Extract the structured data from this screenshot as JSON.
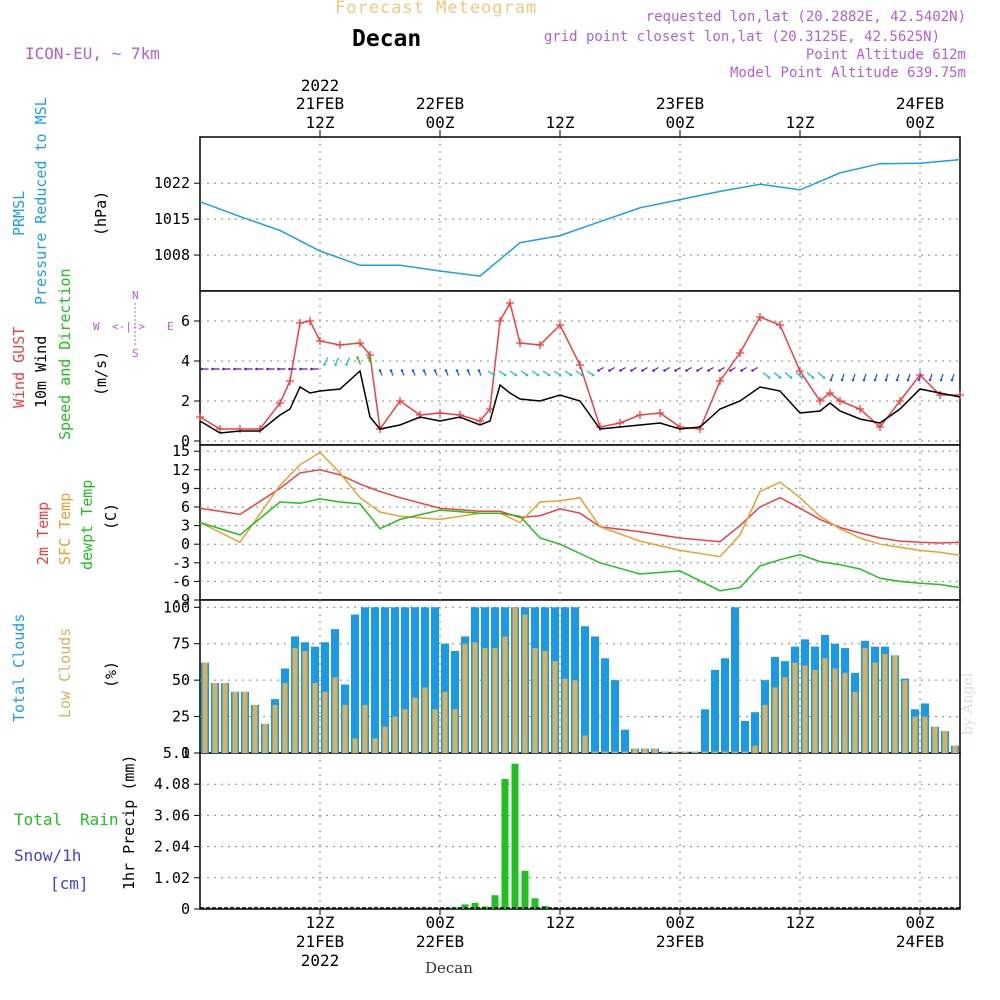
{
  "header": {
    "title": "Forecast Meteogram",
    "location": "Decan",
    "model": "ICON-EU, ~ 7km",
    "requested": "requested lon,lat (20.2882E, 42.5402N)",
    "grid_point": "grid point closest lon,lat (20.3125E, 42.5625N)",
    "point_altitude": "Point Altitude 612m",
    "model_altitude": "Model Point Altitude 639.75m",
    "watermark": "by Angel",
    "footer_location": "Decan"
  },
  "time_axis": {
    "year": "2022",
    "ticks": [
      {
        "hour": 12,
        "top": "21FEB",
        "bottom": "12Z",
        "year": true
      },
      {
        "hour": 24,
        "top": "22FEB",
        "bottom": "00Z",
        "year": false
      },
      {
        "hour": 36,
        "top": "",
        "bottom": "12Z",
        "year": false
      },
      {
        "hour": 48,
        "top": "23FEB",
        "bottom": "00Z",
        "year": false
      },
      {
        "hour": 60,
        "top": "",
        "bottom": "12Z",
        "year": false
      },
      {
        "hour": 72,
        "top": "24FEB",
        "bottom": "00Z",
        "year": false
      }
    ]
  },
  "panels": {
    "pressure": {
      "label_var": "PRMSL",
      "label_name": "Pressure Reduced to MSL",
      "unit": "(hPa)"
    },
    "wind": {
      "label_gust": "Wind GUST",
      "label_10m": "10m Wind",
      "label_speed": "Speed and Direction",
      "unit": "(m/s)",
      "compass_n": "N",
      "compass_s": "S",
      "compass_w": "W",
      "compass_e": "E"
    },
    "temp": {
      "label_2m": "2m Temp",
      "label_sfc": "SFC Temp",
      "label_dewpt": "dewpt Temp",
      "unit": "(C)"
    },
    "clouds": {
      "label_total": "Total Clouds",
      "label_low": "Low Clouds",
      "unit": "(%)"
    },
    "precip": {
      "label_total": "Total",
      "label_rain": "Rain",
      "label_snow": "Snow/1h",
      "label_cm": "[cm]",
      "label_axis": "1hr Precip (mm)"
    }
  },
  "colors": {
    "pressure": "#1aa0e6",
    "gust": "#f04040",
    "wind": "#000000",
    "temp2m": "#f04040",
    "sfc": "#e8a030",
    "dewpt": "#20c020",
    "total_clouds": "#1a9ae6",
    "low_clouds": "#d8b060",
    "rain": "#20c020",
    "snow": "#4040e0",
    "arrow_west": "#6020c0",
    "arrow_east": "#20c0c0",
    "arrow_south": "#2060e0",
    "arrow_north": "#20c020"
  },
  "chart_data": [
    {
      "type": "line",
      "title": "Pressure Reduced to MSL",
      "ylabel": "(hPa)",
      "ylim": [
        1001,
        1031
      ],
      "yticks": [
        1008,
        1015,
        1022
      ],
      "x_hours": [
        0,
        4,
        8,
        12,
        16,
        20,
        24,
        28,
        32,
        36,
        40,
        44,
        48,
        52,
        56,
        60,
        64,
        68,
        72,
        76
      ],
      "series": [
        {
          "name": "PRMSL",
          "values": [
            1018.4,
            1015.5,
            1012.8,
            1008.8,
            1006.0,
            1006.0,
            1004.9,
            1003.9,
            1010.4,
            1011.8,
            1014.5,
            1017.2,
            1018.8,
            1020.4,
            1021.8,
            1020.7,
            1024.0,
            1025.8,
            1025.9,
            1026.6
          ]
        }
      ]
    },
    {
      "type": "line",
      "title": "Wind GUST / 10m Wind Speed and Direction",
      "ylabel": "(m/s)",
      "ylim": [
        -0.2,
        7.5
      ],
      "yticks": [
        0,
        2,
        4,
        6
      ],
      "x_hours": [
        0,
        2,
        4,
        6,
        8,
        9,
        10,
        11,
        12,
        14,
        16,
        17,
        18,
        20,
        22,
        24,
        26,
        28,
        29,
        30,
        31,
        32,
        34,
        36,
        38,
        40,
        42,
        44,
        46,
        48,
        50,
        52,
        54,
        56,
        58,
        60,
        62,
        63,
        64,
        66,
        68,
        70,
        72,
        74,
        76
      ],
      "series": [
        {
          "name": "Wind GUST",
          "values": [
            1.2,
            0.6,
            0.6,
            0.6,
            1.9,
            3.0,
            5.9,
            6.0,
            5.0,
            4.8,
            4.9,
            4.3,
            0.6,
            2.0,
            1.3,
            1.4,
            1.3,
            1.0,
            1.6,
            6.0,
            6.9,
            4.9,
            4.8,
            5.8,
            3.8,
            0.7,
            0.9,
            1.3,
            1.4,
            0.7,
            0.6,
            3.0,
            4.4,
            6.2,
            5.8,
            3.5,
            2.0,
            2.4,
            2.0,
            1.6,
            0.7,
            2.0,
            3.3,
            2.3,
            2.3
          ]
        },
        {
          "name": "10m Wind",
          "values": [
            1.0,
            0.4,
            0.5,
            0.5,
            1.3,
            1.6,
            2.7,
            2.4,
            2.5,
            2.6,
            3.5,
            1.2,
            0.6,
            0.8,
            1.2,
            1.0,
            1.2,
            0.8,
            1.0,
            2.8,
            2.4,
            2.1,
            2.0,
            2.3,
            2.0,
            0.6,
            0.7,
            0.8,
            0.9,
            0.6,
            0.7,
            1.6,
            2.0,
            2.7,
            2.5,
            1.4,
            1.5,
            1.9,
            1.5,
            1.1,
            0.9,
            1.6,
            2.6,
            2.4,
            2.2
          ]
        }
      ]
    },
    {
      "type": "line",
      "title": "2m Temp / SFC Temp / dewpt Temp",
      "ylabel": "(C)",
      "ylim": [
        -9,
        16
      ],
      "yticks": [
        -9,
        -6,
        -3,
        0,
        3,
        6,
        9,
        12,
        15
      ],
      "x_hours": [
        0,
        4,
        8,
        10,
        12,
        14,
        16,
        18,
        20,
        24,
        28,
        30,
        32,
        34,
        36,
        38,
        40,
        44,
        48,
        52,
        54,
        56,
        58,
        60,
        62,
        64,
        66,
        68,
        70,
        72,
        74,
        76
      ],
      "series": [
        {
          "name": "2m Temp",
          "values": [
            5.8,
            4.8,
            9.0,
            11.5,
            12.0,
            11.2,
            9.7,
            8.5,
            7.5,
            5.8,
            5.3,
            5.3,
            4.3,
            4.6,
            5.7,
            5.0,
            2.8,
            2.0,
            1.0,
            0.4,
            3.0,
            6.0,
            7.5,
            5.8,
            4.0,
            2.7,
            1.8,
            1.0,
            0.5,
            0.3,
            0.2,
            0.3
          ]
        },
        {
          "name": "SFC Temp",
          "values": [
            3.5,
            0.3,
            9.5,
            12.8,
            14.8,
            11.5,
            7.5,
            5.2,
            4.5,
            4.0,
            5.0,
            5.0,
            3.5,
            6.8,
            7.0,
            7.5,
            2.8,
            0.5,
            -1.0,
            -2.0,
            1.5,
            8.5,
            10.0,
            7.5,
            4.5,
            2.5,
            1.0,
            0.0,
            -0.5,
            -1.0,
            -1.3,
            -1.8
          ]
        },
        {
          "name": "dewpt Temp",
          "values": [
            3.5,
            1.5,
            6.8,
            6.6,
            7.3,
            6.8,
            6.5,
            2.5,
            4.0,
            5.5,
            5.0,
            5.0,
            4.5,
            1.0,
            0.0,
            -1.5,
            -3.0,
            -4.8,
            -4.3,
            -7.5,
            -7.0,
            -3.5,
            -2.5,
            -1.7,
            -2.8,
            -3.3,
            -4.0,
            -5.5,
            -6.0,
            -6.3,
            -6.5,
            -7.0
          ]
        }
      ]
    },
    {
      "type": "bar",
      "title": "Total Clouds / Low Clouds",
      "ylabel": "(%)",
      "ylim": [
        0,
        105
      ],
      "yticks": [
        0,
        25,
        50,
        75,
        100
      ],
      "x_hours": [
        0,
        1,
        2,
        3,
        4,
        5,
        6,
        7,
        8,
        9,
        10,
        11,
        12,
        13,
        14,
        15,
        16,
        17,
        18,
        19,
        20,
        21,
        22,
        23,
        24,
        25,
        26,
        27,
        28,
        29,
        30,
        31,
        32,
        33,
        34,
        35,
        36,
        37,
        38,
        39,
        40,
        41,
        42,
        43,
        44,
        45,
        46,
        47,
        48,
        49,
        50,
        51,
        52,
        53,
        54,
        55,
        56,
        57,
        58,
        59,
        60,
        61,
        62,
        63,
        64,
        65,
        66,
        67,
        68,
        69,
        70,
        71,
        72,
        73,
        74,
        75
      ],
      "series": [
        {
          "name": "Total Clouds",
          "values": [
            62,
            48,
            48,
            42,
            42,
            33,
            20,
            37,
            58,
            80,
            76,
            73,
            76,
            85,
            47,
            95,
            100,
            100,
            100,
            100,
            100,
            100,
            100,
            100,
            75,
            70,
            80,
            100,
            100,
            100,
            100,
            100,
            100,
            100,
            100,
            100,
            100,
            100,
            87,
            80,
            65,
            50,
            16,
            3,
            3,
            3,
            1,
            1,
            1,
            1,
            30,
            57,
            65,
            100,
            22,
            28,
            50,
            66,
            63,
            73,
            78,
            73,
            81,
            75,
            72,
            55,
            77,
            73,
            73,
            67,
            51,
            30,
            34,
            18,
            15,
            5
          ]
        },
        {
          "name": "Low Clouds",
          "values": [
            62,
            48,
            48,
            42,
            42,
            33,
            20,
            33,
            48,
            72,
            70,
            48,
            42,
            52,
            33,
            10,
            33,
            10,
            18,
            25,
            30,
            38,
            45,
            30,
            42,
            30,
            75,
            76,
            72,
            72,
            80,
            100,
            95,
            72,
            70,
            63,
            51,
            50,
            12,
            1,
            1,
            1,
            1,
            3,
            3,
            3,
            1,
            1,
            1,
            1,
            1,
            1,
            1,
            1,
            1,
            5,
            33,
            45,
            52,
            62,
            60,
            57,
            65,
            58,
            55,
            42,
            72,
            62,
            68,
            67,
            50,
            25,
            25,
            18,
            15,
            5
          ]
        }
      ]
    },
    {
      "type": "bar",
      "title": "1hr Precip (mm)",
      "ylabel": "1hr Precip (mm)",
      "ylim": [
        0,
        5.1
      ],
      "yticks": [
        0,
        1.02,
        2.04,
        3.06,
        4.08,
        5.1
      ],
      "x_hours": [
        25,
        26,
        27,
        28,
        29,
        30,
        31,
        32,
        33,
        34
      ],
      "series": [
        {
          "name": "Total Rain",
          "values": [
            0.05,
            0.15,
            0.2,
            0.08,
            0.45,
            4.25,
            4.75,
            1.25,
            0.35,
            0.1
          ]
        },
        {
          "name": "Snow/1h",
          "values": [
            0,
            0,
            0,
            0,
            0,
            0,
            0,
            0,
            0,
            0
          ]
        }
      ]
    }
  ]
}
